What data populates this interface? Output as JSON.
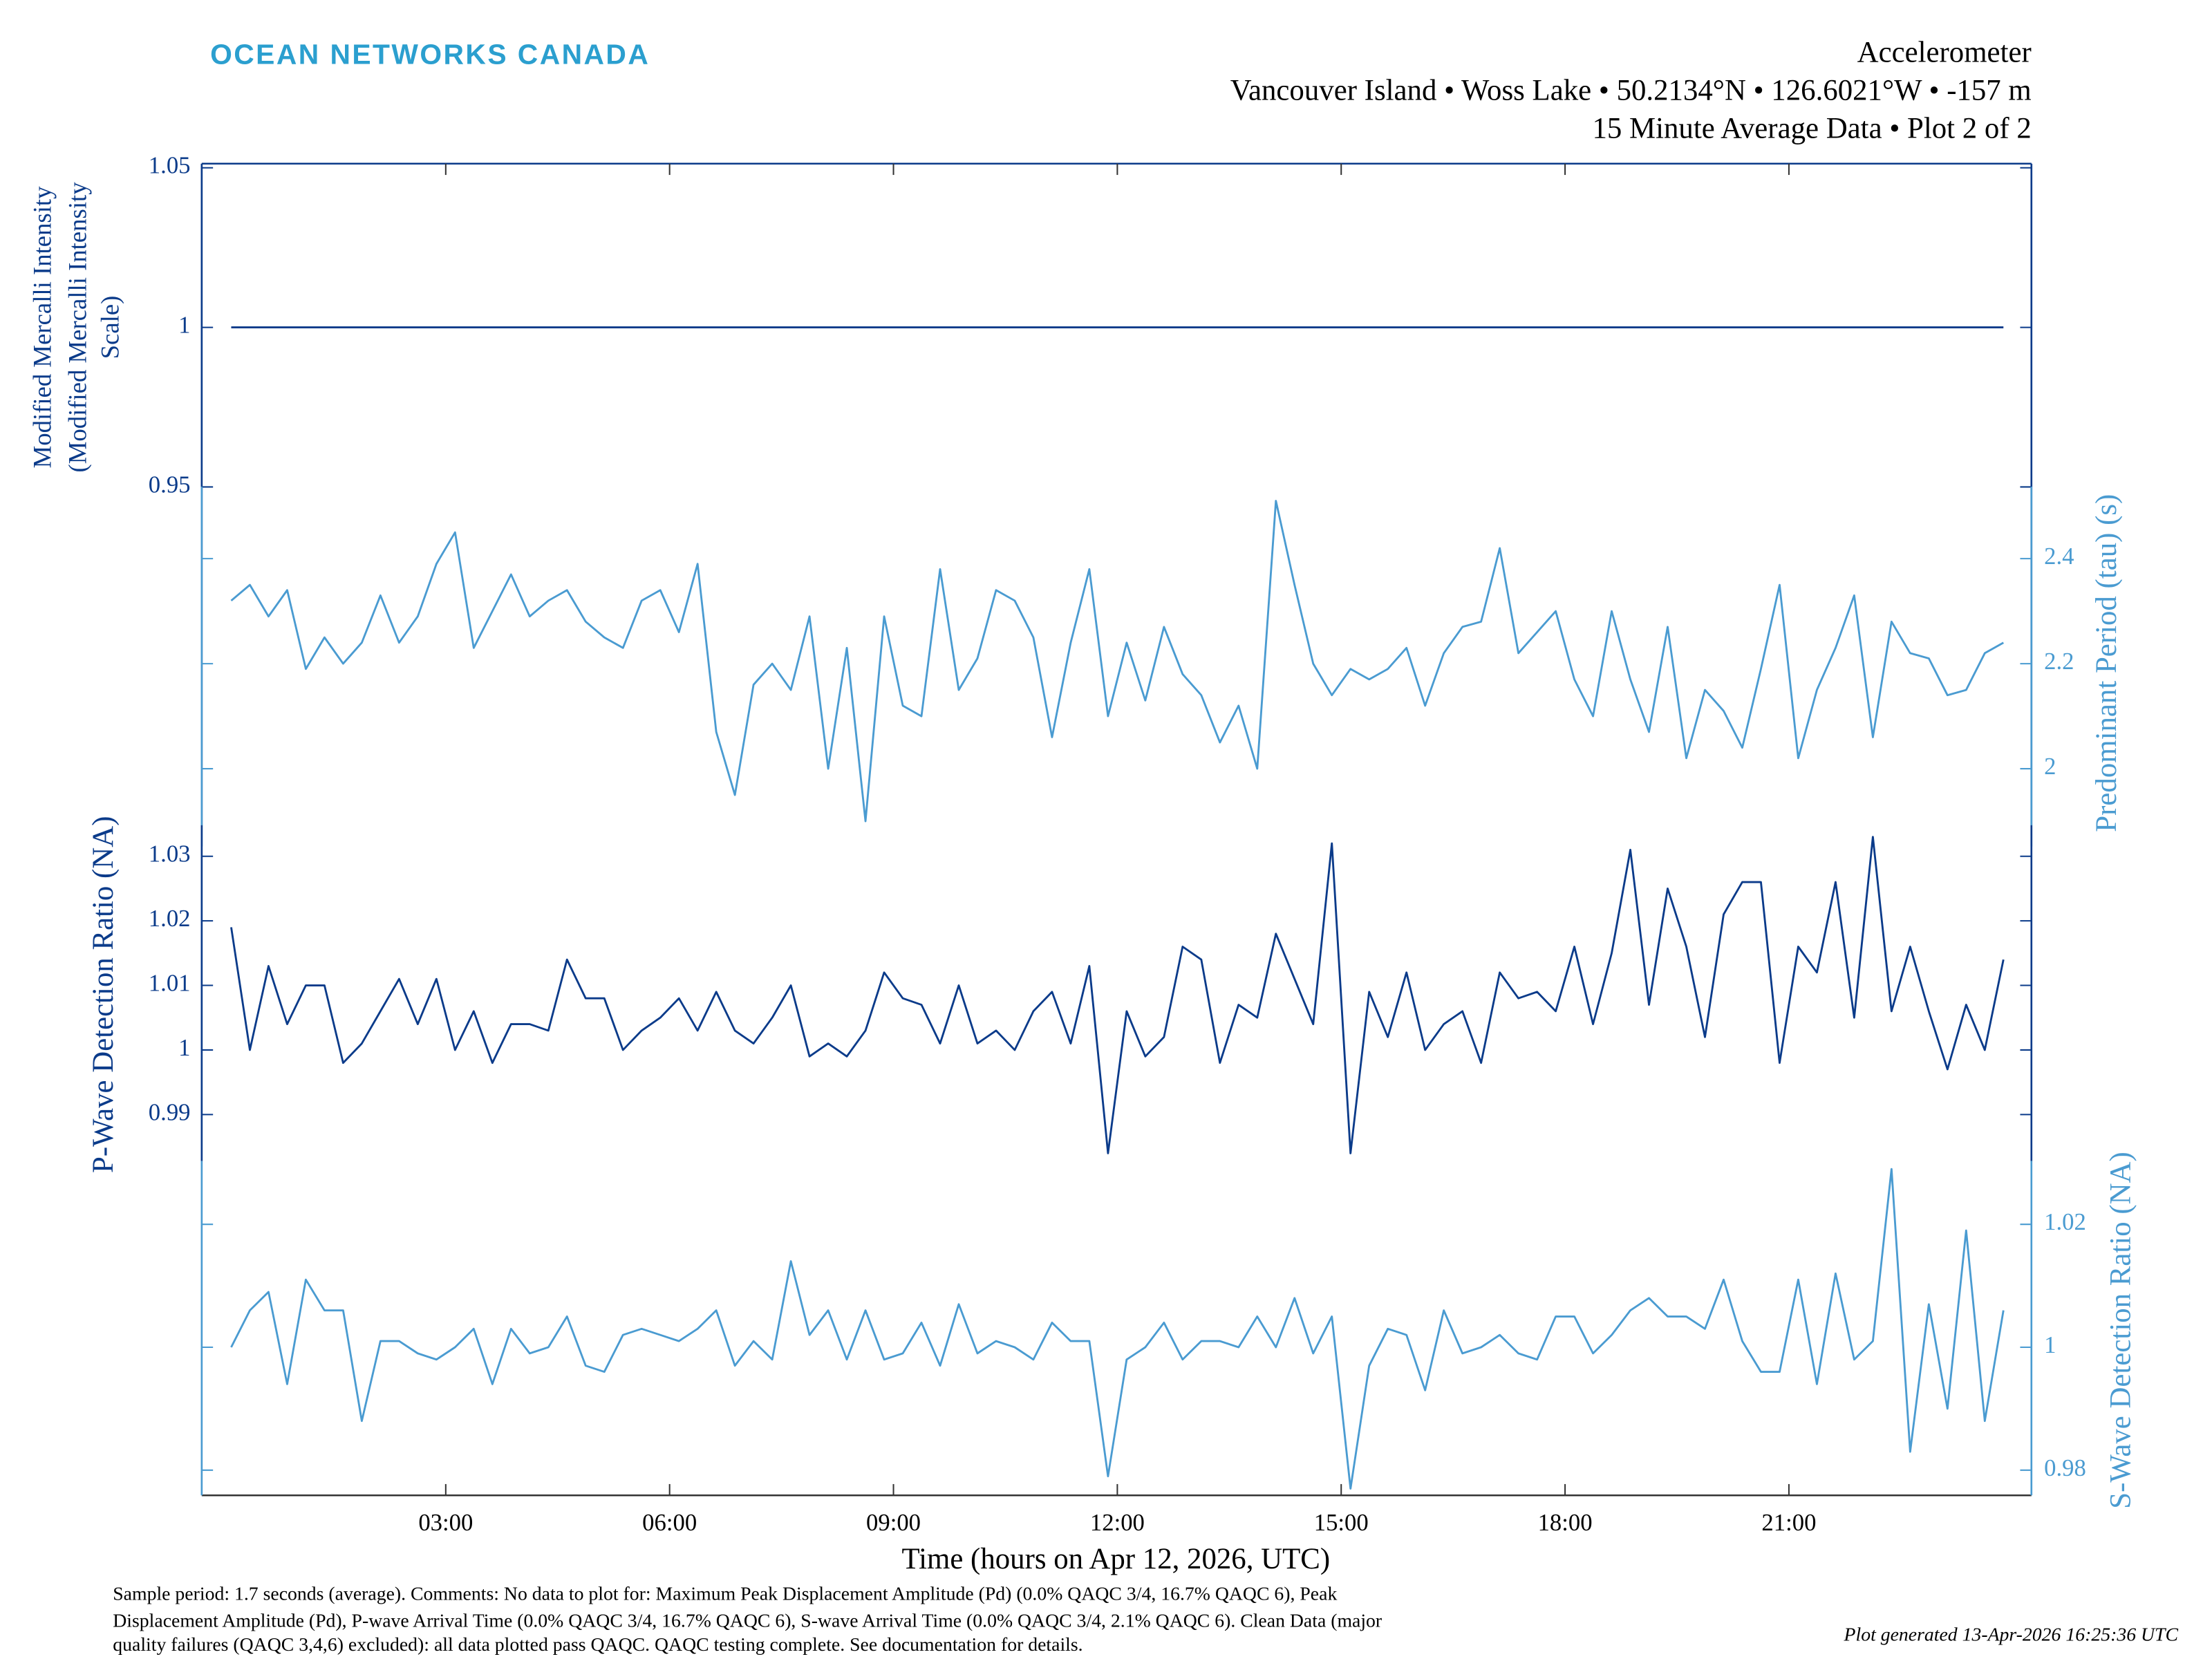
{
  "chart_data": {
    "type": "line",
    "logo": "OCEAN NETWORKS CANADA",
    "title": "Accelerometer",
    "subtitle": [
      "Vancouver Island • Woss Lake • 50.2134°N • 126.6021°W • -157 m",
      "15 Minute Average Data • Plot 2 of 2"
    ],
    "xlabel": "Time (hours on Apr 12, 2026, UTC)",
    "xlim": [
      -0.27,
      24.25
    ],
    "xticks": [
      {
        "value": 3,
        "label": "03:00"
      },
      {
        "value": 6,
        "label": "06:00"
      },
      {
        "value": 9,
        "label": "09:00"
      },
      {
        "value": 12,
        "label": "12:00"
      },
      {
        "value": 15,
        "label": "15:00"
      },
      {
        "value": 18,
        "label": "18:00"
      },
      {
        "value": 21,
        "label": "21:00"
      }
    ],
    "x": [
      0.125,
      0.375,
      0.625,
      0.875,
      1.125,
      1.375,
      1.625,
      1.875,
      2.125,
      2.375,
      2.625,
      2.875,
      3.125,
      3.375,
      3.625,
      3.875,
      4.125,
      4.375,
      4.625,
      4.875,
      5.125,
      5.375,
      5.625,
      5.875,
      6.125,
      6.375,
      6.625,
      6.875,
      7.125,
      7.375,
      7.625,
      7.875,
      8.125,
      8.375,
      8.625,
      8.875,
      9.125,
      9.375,
      9.625,
      9.875,
      10.125,
      10.375,
      10.625,
      10.875,
      11.125,
      11.375,
      11.625,
      11.875,
      12.125,
      12.375,
      12.625,
      12.875,
      13.125,
      13.375,
      13.625,
      13.875,
      14.125,
      14.375,
      14.625,
      14.875,
      15.125,
      15.375,
      15.625,
      15.875,
      16.125,
      16.375,
      16.625,
      16.875,
      17.125,
      17.375,
      17.625,
      17.875,
      18.125,
      18.375,
      18.625,
      18.875,
      19.125,
      19.375,
      19.625,
      19.875,
      20.125,
      20.375,
      20.625,
      20.875,
      21.125,
      21.375,
      21.625,
      21.875,
      22.125,
      22.375,
      22.625,
      22.875,
      23.125,
      23.375,
      23.625,
      23.875
    ],
    "panels": [
      {
        "ylabel": [
          "Modified Mercalli Intensity",
          "(Modified Mercalli Intensity",
          "Scale)"
        ],
        "side": "left",
        "color": "#0b3b8a",
        "ylim": [
          0.844,
          1.0513
        ],
        "yticks": [
          0.95,
          1,
          1.05
        ],
        "values": [
          1,
          1,
          1,
          1,
          1,
          1,
          1,
          1,
          1,
          1,
          1,
          1,
          1,
          1,
          1,
          1,
          1,
          1,
          1,
          1,
          1,
          1,
          1,
          1,
          1,
          1,
          1,
          1,
          1,
          1,
          1,
          1,
          1,
          1,
          1,
          1,
          1,
          1,
          1,
          1,
          1,
          1,
          1,
          1,
          1,
          1,
          1,
          1,
          1,
          1,
          1,
          1,
          1,
          1,
          1,
          1,
          1,
          1,
          1,
          1,
          1,
          1,
          1,
          1,
          1,
          1,
          1,
          1,
          1,
          1,
          1,
          1,
          1,
          1,
          1,
          1,
          1,
          1,
          1,
          1,
          1,
          1,
          1,
          1,
          1,
          1,
          1,
          1,
          1,
          1,
          1,
          1,
          1,
          1,
          1,
          1
        ]
      },
      {
        "ylabel": "Predominant Period (tau) (s)",
        "side": "right",
        "color": "#4a9bd1",
        "ylim": [
          1.852,
          2.537
        ],
        "yticks": [
          2,
          2.2,
          2.4
        ],
        "values": [
          2.32,
          2.35,
          2.29,
          2.34,
          2.19,
          2.25,
          2.2,
          2.24,
          2.33,
          2.24,
          2.29,
          2.39,
          2.45,
          2.23,
          2.3,
          2.37,
          2.29,
          2.32,
          2.34,
          2.28,
          2.25,
          2.23,
          2.32,
          2.34,
          2.26,
          2.39,
          2.07,
          1.95,
          2.16,
          2.2,
          2.15,
          2.29,
          2.0,
          2.23,
          1.9,
          2.29,
          2.12,
          2.1,
          2.38,
          2.15,
          2.21,
          2.34,
          2.32,
          2.25,
          2.06,
          2.24,
          2.38,
          2.1,
          2.24,
          2.13,
          2.27,
          2.18,
          2.14,
          2.05,
          2.12,
          2.0,
          2.51,
          2.35,
          2.2,
          2.14,
          2.19,
          2.17,
          2.19,
          2.23,
          2.12,
          2.22,
          2.27,
          2.28,
          2.42,
          2.22,
          2.26,
          2.3,
          2.17,
          2.1,
          2.3,
          2.17,
          2.07,
          2.27,
          2.02,
          2.15,
          2.11,
          2.04,
          2.19,
          2.35,
          2.02,
          2.15,
          2.23,
          2.33,
          2.06,
          2.28,
          2.22,
          2.21,
          2.14,
          2.15,
          2.22,
          2.24
        ]
      },
      {
        "ylabel": "P-Wave Detection Ratio (NA)",
        "side": "left",
        "color": "#0b3b8a",
        "ylim": [
          0.9828,
          1.0348
        ],
        "yticks": [
          0.99,
          1,
          1.01,
          1.02,
          1.03
        ],
        "values": [
          1.019,
          1.0,
          1.013,
          1.004,
          1.01,
          1.01,
          0.998,
          1.001,
          1.006,
          1.011,
          1.004,
          1.011,
          1.0,
          1.006,
          0.998,
          1.004,
          1.004,
          1.003,
          1.014,
          1.008,
          1.008,
          1.0,
          1.003,
          1.005,
          1.008,
          1.003,
          1.009,
          1.003,
          1.001,
          1.005,
          1.01,
          0.999,
          1.001,
          0.999,
          1.003,
          1.012,
          1.008,
          1.007,
          1.001,
          1.01,
          1.001,
          1.003,
          1.0,
          1.006,
          1.009,
          1.001,
          1.013,
          0.984,
          1.006,
          0.999,
          1.002,
          1.016,
          1.014,
          0.998,
          1.007,
          1.005,
          1.018,
          1.011,
          1.004,
          1.032,
          0.984,
          1.009,
          1.002,
          1.012,
          1.0,
          1.004,
          1.006,
          0.998,
          1.012,
          1.008,
          1.009,
          1.006,
          1.016,
          1.004,
          1.015,
          1.031,
          1.007,
          1.025,
          1.016,
          1.002,
          1.021,
          1.026,
          1.026,
          0.998,
          1.016,
          1.012,
          1.026,
          1.005,
          1.033,
          1.006,
          1.016,
          1.006,
          0.997,
          1.007,
          1.0,
          1.014
        ]
      },
      {
        "ylabel": "S-Wave Detection Ratio (NA)",
        "side": "right",
        "color": "#4a9bd1",
        "ylim": [
          0.9759,
          1.0303
        ],
        "yticks": [
          0.98,
          1,
          1.02
        ],
        "values": [
          1.0,
          1.006,
          1.009,
          0.994,
          1.011,
          1.006,
          1.006,
          0.988,
          1.001,
          1.001,
          0.999,
          0.998,
          1.0,
          1.003,
          0.994,
          1.003,
          0.999,
          1.0,
          1.005,
          0.997,
          0.996,
          1.002,
          1.003,
          1.002,
          1.001,
          1.003,
          1.006,
          0.997,
          1.001,
          0.998,
          1.014,
          1.002,
          1.006,
          0.998,
          1.006,
          0.998,
          0.999,
          1.004,
          0.997,
          1.007,
          0.999,
          1.001,
          1.0,
          0.998,
          1.004,
          1.001,
          1.001,
          0.979,
          0.998,
          1.0,
          1.004,
          0.998,
          1.001,
          1.001,
          1.0,
          1.005,
          1.0,
          1.008,
          0.999,
          1.005,
          0.977,
          0.997,
          1.003,
          1.002,
          0.993,
          1.006,
          0.999,
          1.0,
          1.002,
          0.999,
          0.998,
          1.005,
          1.005,
          0.999,
          1.002,
          1.006,
          1.008,
          1.005,
          1.005,
          1.003,
          1.011,
          1.001,
          0.996,
          0.996,
          1.011,
          0.994,
          1.012,
          0.998,
          1.001,
          1.029,
          0.983,
          1.007,
          0.99,
          1.019,
          0.988,
          1.006
        ]
      }
    ],
    "footnote": [
      "Sample period: 1.7 seconds (average). Comments: No data to plot for: Maximum Peak Displacement Amplitude (Pd) (0.0% QAQC 3/4, 16.7% QAQC 6), Peak",
      "Displacement Amplitude (Pd), P-wave Arrival Time (0.0% QAQC 3/4, 16.7% QAQC 6), S-wave Arrival Time (0.0% QAQC 3/4, 2.1% QAQC 6). Clean Data (major",
      "quality failures (QAQC 3,4,6) excluded): all data plotted pass QAQC. QAQC testing complete. See documentation for details."
    ],
    "generated": "Plot generated 13-Apr-2026 16:25:36 UTC"
  }
}
